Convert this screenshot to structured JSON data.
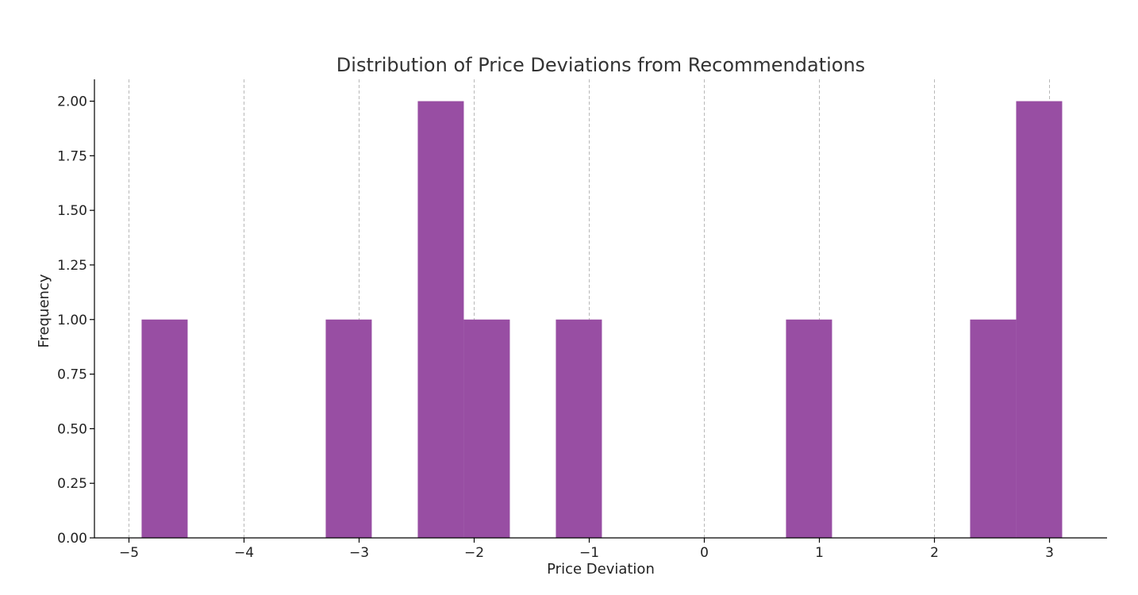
{
  "chart_data": {
    "type": "bar",
    "title": "Distribution of Price Deviations from Recommendations",
    "xlabel": "Price Deviation",
    "ylabel": "Frequency",
    "xlim": [
      -5.3,
      3.5
    ],
    "ylim": [
      0,
      2.1
    ],
    "x_ticks": [
      -5,
      -4,
      -3,
      -2,
      -1,
      0,
      1,
      2,
      3
    ],
    "x_tick_labels": [
      "−5",
      "−4",
      "−3",
      "−2",
      "−1",
      "0",
      "1",
      "2",
      "3"
    ],
    "y_ticks": [
      0,
      0.25,
      0.5,
      0.75,
      1.0,
      1.25,
      1.5,
      1.75,
      2.0
    ],
    "y_tick_labels": [
      "0.00",
      "0.25",
      "0.50",
      "0.75",
      "1.00",
      "1.25",
      "1.50",
      "1.75",
      "2.00"
    ],
    "grid": "vertical-dashed",
    "bar_color": "#984ea3",
    "bins": [
      {
        "start": -4.89,
        "end": -4.49,
        "count": 1
      },
      {
        "start": -3.29,
        "end": -2.89,
        "count": 1
      },
      {
        "start": -2.49,
        "end": -2.09,
        "count": 2
      },
      {
        "start": -2.09,
        "end": -1.69,
        "count": 1
      },
      {
        "start": -1.29,
        "end": -0.89,
        "count": 1
      },
      {
        "start": 0.71,
        "end": 1.11,
        "count": 1
      },
      {
        "start": 2.31,
        "end": 2.71,
        "count": 1
      },
      {
        "start": 2.71,
        "end": 3.11,
        "count": 2
      }
    ]
  }
}
